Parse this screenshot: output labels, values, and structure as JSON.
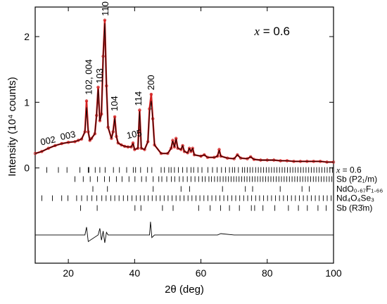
{
  "chart_data": {
    "type": "line",
    "xlabel": "2θ (deg)",
    "ylabel": "Intensity (10⁴ counts)",
    "xlim": [
      10,
      100
    ],
    "ylim": [
      -1.45,
      2.45
    ],
    "x_ticks": [
      20,
      40,
      60,
      80,
      100
    ],
    "y_ticks": [
      0,
      1,
      2
    ],
    "annotation": {
      "var": "x",
      "rest": " = 0.6"
    },
    "series": [
      {
        "role": "observed",
        "color": "#d42020",
        "x": [
          10,
          12,
          14,
          16,
          18,
          20,
          22,
          23,
          24,
          25,
          25.5,
          26,
          26.5,
          27,
          28,
          28.5,
          29,
          29.5,
          30,
          30.5,
          31,
          31.5,
          32,
          33,
          33.5,
          34,
          34.5,
          35,
          36,
          37,
          38,
          39,
          39.5,
          40,
          41,
          41.5,
          42,
          43,
          44,
          44.5,
          45,
          45.5,
          46,
          48,
          50,
          51,
          51.5,
          52,
          52.5,
          53,
          54,
          54.5,
          55,
          56,
          56.5,
          57,
          57.5,
          58,
          60,
          61,
          62,
          64,
          65,
          65.5,
          66,
          68,
          70,
          71,
          72,
          74,
          75,
          76,
          78,
          80,
          82,
          84,
          86,
          88,
          90,
          92,
          94,
          96,
          98,
          100
        ],
        "y": [
          0.22,
          0.25,
          0.3,
          0.34,
          0.37,
          0.39,
          0.4,
          0.42,
          0.44,
          0.55,
          1.02,
          0.55,
          0.42,
          0.45,
          0.52,
          0.8,
          1.23,
          0.72,
          0.82,
          1.7,
          2.25,
          1.25,
          0.62,
          0.45,
          0.55,
          0.78,
          0.48,
          0.38,
          0.35,
          0.33,
          0.32,
          0.32,
          0.38,
          0.28,
          0.3,
          0.88,
          0.3,
          0.28,
          0.4,
          0.9,
          1.12,
          0.75,
          0.35,
          0.22,
          0.22,
          0.3,
          0.42,
          0.32,
          0.45,
          0.3,
          0.28,
          0.34,
          0.25,
          0.23,
          0.3,
          0.25,
          0.3,
          0.2,
          0.18,
          0.2,
          0.16,
          0.16,
          0.18,
          0.28,
          0.18,
          0.15,
          0.14,
          0.2,
          0.15,
          0.14,
          0.17,
          0.13,
          0.12,
          0.12,
          0.12,
          0.11,
          0.11,
          0.1,
          0.1,
          0.1,
          0.1,
          0.1,
          0.09,
          0.09
        ]
      },
      {
        "role": "calculated",
        "color": "#000000",
        "x": [
          10,
          12,
          14,
          16,
          18,
          20,
          22,
          23,
          24,
          25,
          25.5,
          26,
          26.5,
          27,
          28,
          28.5,
          29,
          29.5,
          30,
          30.5,
          31,
          31.5,
          32,
          33,
          33.5,
          34,
          34.5,
          35,
          36,
          37,
          38,
          39,
          39.5,
          40,
          41,
          41.5,
          42,
          43,
          44,
          44.5,
          45,
          45.5,
          46,
          48,
          50,
          51,
          51.5,
          52,
          52.5,
          53,
          54,
          54.5,
          55,
          56,
          56.5,
          57,
          57.5,
          58,
          60,
          61,
          62,
          64,
          65,
          65.5,
          66,
          68,
          70,
          71,
          72,
          74,
          75,
          76,
          78,
          80,
          82,
          84,
          86,
          88,
          90,
          92,
          94,
          96,
          98,
          100
        ],
        "y": [
          0.22,
          0.25,
          0.3,
          0.34,
          0.37,
          0.39,
          0.4,
          0.42,
          0.44,
          0.55,
          0.92,
          0.55,
          0.42,
          0.45,
          0.52,
          0.8,
          1.2,
          0.72,
          0.82,
          1.68,
          2.2,
          1.25,
          0.62,
          0.45,
          0.55,
          0.76,
          0.48,
          0.38,
          0.35,
          0.33,
          0.32,
          0.32,
          0.37,
          0.28,
          0.3,
          0.86,
          0.3,
          0.28,
          0.4,
          0.85,
          1.02,
          0.72,
          0.35,
          0.22,
          0.22,
          0.3,
          0.41,
          0.32,
          0.44,
          0.3,
          0.28,
          0.34,
          0.25,
          0.23,
          0.3,
          0.25,
          0.3,
          0.2,
          0.18,
          0.2,
          0.16,
          0.16,
          0.18,
          0.27,
          0.18,
          0.15,
          0.14,
          0.2,
          0.15,
          0.14,
          0.17,
          0.13,
          0.12,
          0.12,
          0.12,
          0.11,
          0.11,
          0.1,
          0.1,
          0.1,
          0.1,
          0.1,
          0.09,
          0.09
        ]
      },
      {
        "role": "difference",
        "color": "#000000",
        "x": [
          10,
          20,
          25,
          25.5,
          26,
          29,
          29.5,
          30,
          30.5,
          31,
          31.5,
          32,
          40,
          44.5,
          44.8,
          45.2,
          46,
          60,
          65,
          66,
          70,
          80,
          90,
          100
        ],
        "y": [
          -1.02,
          -1.02,
          -1.02,
          -0.9,
          -1.12,
          -1.02,
          -0.92,
          -1.1,
          -0.96,
          -1.14,
          -0.98,
          -1.02,
          -1.02,
          -1.02,
          -0.82,
          -1.06,
          -1.02,
          -1.02,
          -1.02,
          -1.0,
          -1.02,
          -1.02,
          -1.02,
          -1.02
        ]
      }
    ],
    "peak_labels": [
      {
        "text": "002",
        "x": 13.5,
        "y": 0.28
      },
      {
        "text": "003",
        "x": 19.5,
        "y": 0.36
      },
      {
        "text": "102, 004",
        "x": 26.2,
        "y": 1.05
      },
      {
        "text": "103",
        "x": 29.5,
        "y": 1.22
      },
      {
        "text": "110",
        "x": 31.2,
        "y": 2.25
      },
      {
        "text": "104",
        "x": 34.0,
        "y": 0.8
      },
      {
        "text": "105",
        "x": 39.5,
        "y": 0.38
      },
      {
        "text": "114",
        "x": 41.2,
        "y": 0.88
      },
      {
        "text": "200",
        "x": 45.0,
        "y": 1.12
      }
    ],
    "tick_rows": [
      {
        "main": "",
        "var": "x",
        "rest": " = 0.6",
        "y": -0.03,
        "positions": [
          13.5,
          17,
          19.6,
          23.5,
          26,
          26.2,
          28.1,
          29.5,
          31.1,
          33.6,
          35.4,
          37.6,
          39.6,
          40.3,
          41.8,
          43.9,
          45.2,
          48,
          49,
          50.3,
          51,
          52,
          53.2,
          54.5,
          55.8,
          57,
          57.8,
          59.1,
          60.3,
          62.1,
          63.5,
          64.9,
          66.2,
          67.4,
          68.6,
          69.5,
          70.2,
          71.3,
          72.5,
          73.2,
          74,
          74.8,
          75.6,
          76.5,
          77.3,
          78.1,
          78.9,
          79.7,
          80.5,
          81.3,
          82.1,
          82.9,
          83.7,
          84.5,
          85.3,
          86.1,
          86.9,
          87.7,
          88.5,
          89.3,
          90.1,
          90.9,
          91.7,
          92.5,
          93.3,
          94.1,
          94.9,
          95.7,
          96.5,
          97.3,
          98.1,
          98.9,
          99.7
        ]
      },
      {
        "main": "Sb (P2₁/m)",
        "var": "",
        "rest": "",
        "y": -0.17,
        "positions": [
          22,
          24.5,
          26.6,
          28.8,
          30.9,
          32.4,
          34.5,
          36.2,
          38.3,
          40.1,
          42.1,
          43.5,
          45.6,
          47.3,
          48.2,
          49.7,
          51.1,
          52.1,
          53.5,
          54.6,
          55.9,
          57,
          58.2,
          59.3,
          60.4,
          61.3,
          62.4,
          63.2,
          64.1,
          65,
          65.8,
          66.7,
          67.5,
          68.3,
          69.1,
          69.9,
          70.7,
          71.5,
          72.3,
          73.1,
          73.9,
          74.7,
          75.5,
          76.3,
          77.1,
          77.9,
          78.7,
          79.5,
          80.3,
          81.1,
          81.9,
          82.7,
          83.5,
          84.3,
          85.1,
          85.9,
          86.7,
          87.5,
          88.3,
          89.1,
          89.9,
          90.7,
          91.5,
          92.3,
          93.1,
          93.9,
          94.7,
          95.5,
          96.3,
          97.1,
          97.9,
          98.7,
          99.5
        ]
      },
      {
        "main": "NdO₀.₆₇F₁.₆₆",
        "var": "",
        "rest": "",
        "y": -0.32,
        "positions": [
          27.4,
          31.8,
          45.6,
          54,
          56.6,
          66.5,
          73.4,
          75.6,
          83.9,
          90.5,
          92.7
        ]
      },
      {
        "main": "Nd₄O₄Se₃",
        "var": "",
        "rest": "",
        "y": -0.46,
        "positions": [
          12,
          15.2,
          18,
          19.9,
          22.5,
          24,
          25.7,
          27.1,
          28.6,
          30.1,
          31.4,
          32.8,
          34,
          35.3,
          36.6,
          37.9,
          39.2,
          40.5,
          41.7,
          42.9,
          44.1,
          45.3,
          46.5,
          47.7,
          48.9,
          50.1,
          51.3,
          52.5,
          53.7,
          54.9,
          56.1,
          57.3,
          58.5,
          59.7,
          60.9,
          62.1,
          63.3,
          64.5,
          65.7,
          66.9,
          68.1,
          69.3,
          70.5,
          71.7,
          72.9,
          74.1,
          75.3,
          76.5,
          77.7,
          78.9,
          80.1,
          81.3,
          82.5,
          83.7,
          84.9,
          86.1,
          87.3,
          88.5,
          89.7,
          90.9,
          92.1,
          93.3,
          94.5,
          95.7,
          96.9,
          98.1,
          99.3
        ]
      },
      {
        "main": "Sb (R3̄m)",
        "var": "",
        "rest": "",
        "y": -0.61,
        "positions": [
          23.7,
          28.7,
          40.1,
          41.9,
          48.4,
          51.6,
          59.3,
          62.8,
          65.9,
          68.6,
          71.6,
          75.2,
          76.2,
          78.7,
          82.3,
          86.4,
          89.4,
          92.1,
          95.3,
          97.8
        ]
      }
    ]
  }
}
